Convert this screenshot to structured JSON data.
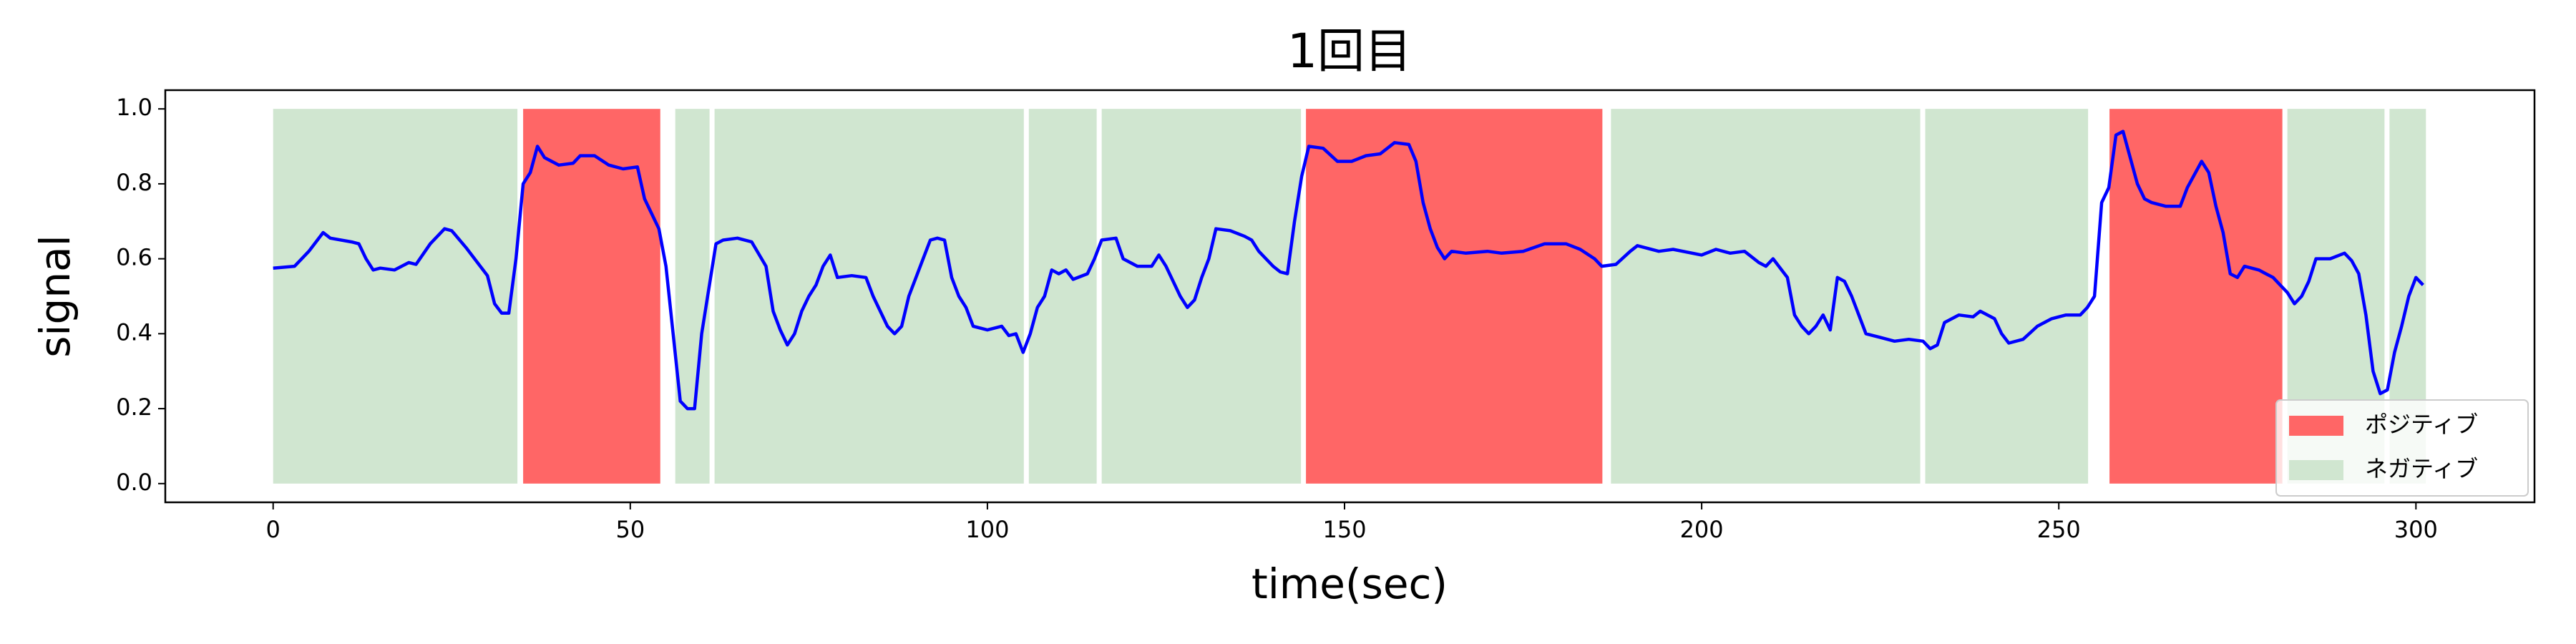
{
  "chart_data": {
    "type": "line",
    "title": "1回目",
    "x_label": "time(sec)",
    "y_label": "signal",
    "xlim": [
      -15.1,
      316.6
    ],
    "ylim": [
      -0.05,
      1.05
    ],
    "xticks": [
      0,
      50,
      100,
      150,
      200,
      250,
      300
    ],
    "yticks": [
      {
        "value": 0,
        "label": "0.0"
      },
      {
        "value": 0.2,
        "label": "0.2"
      },
      {
        "value": 0.4,
        "label": "0.4"
      },
      {
        "value": 0.6,
        "label": "0.6"
      },
      {
        "value": 0.8,
        "label": "0.8"
      },
      {
        "value": 1,
        "label": "1.0"
      }
    ],
    "color": "#0000ff",
    "legend": "lower right",
    "spans": [
      {
        "name": "ポジティブ",
        "color": "#ff6666",
        "ranges": [
          [
            35,
            54.2
          ],
          [
            144.6,
            186.1
          ],
          [
            257.1,
            281.3
          ]
        ]
      },
      {
        "name": "ネガティブ",
        "color": "#d0e6d0",
        "ranges": [
          [
            0,
            34.2
          ],
          [
            56.3,
            61.1
          ],
          [
            61.8,
            105.1
          ],
          [
            105.8,
            115.3
          ],
          [
            116,
            143.9
          ],
          [
            187.3,
            230.6
          ],
          [
            231.3,
            254.1
          ],
          [
            282,
            295.6
          ],
          [
            296.3,
            301.4
          ]
        ]
      }
    ],
    "x": [
      0,
      3,
      5,
      7,
      8,
      11,
      12,
      13,
      14,
      15,
      17,
      19,
      20,
      22,
      24,
      25,
      27,
      29,
      30,
      31,
      32,
      33,
      34,
      35,
      36,
      37,
      38,
      40,
      42,
      43,
      45,
      47,
      49,
      51,
      52,
      54,
      55,
      56,
      57,
      58,
      59,
      60,
      62,
      63,
      65,
      67,
      69,
      70,
      71,
      72,
      73,
      74,
      75,
      76,
      77,
      78,
      79,
      81,
      83,
      84,
      86,
      87,
      88,
      89,
      91,
      92,
      93,
      94,
      95,
      96,
      97,
      98,
      100,
      102,
      103,
      104,
      105,
      106,
      107,
      108,
      109,
      110,
      111,
      112,
      114,
      115,
      116,
      118,
      119,
      121,
      123,
      124,
      125,
      127,
      128,
      129,
      130,
      131,
      132,
      134,
      136,
      137,
      138,
      140,
      141,
      142,
      143,
      144,
      145,
      147,
      149,
      151,
      153,
      155,
      157,
      159,
      160,
      161,
      162,
      163,
      164,
      165,
      167,
      170,
      172,
      175,
      178,
      181,
      183,
      185,
      186,
      188,
      190,
      191,
      194,
      196,
      200,
      202,
      204,
      206,
      208,
      209,
      210,
      212,
      213,
      214,
      215,
      216,
      217,
      218,
      219,
      220,
      221,
      222,
      223,
      225,
      227,
      229,
      231,
      232,
      233,
      234,
      236,
      238,
      239,
      241,
      242,
      243,
      245,
      247,
      249,
      251,
      253,
      254,
      255,
      256,
      257,
      258,
      259,
      260,
      261,
      262,
      263,
      265,
      267,
      268,
      270,
      271,
      272,
      273,
      274,
      275,
      276,
      278,
      279,
      280,
      281,
      282,
      283,
      284,
      285,
      286,
      288,
      290,
      291,
      292,
      293,
      294,
      295,
      296,
      297,
      298,
      299,
      300,
      301
    ],
    "values": [
      0.575,
      0.58,
      0.62,
      0.67,
      0.655,
      0.645,
      0.64,
      0.6,
      0.57,
      0.575,
      0.57,
      0.59,
      0.585,
      0.64,
      0.68,
      0.675,
      0.63,
      0.58,
      0.555,
      0.48,
      0.455,
      0.455,
      0.6,
      0.8,
      0.83,
      0.9,
      0.87,
      0.85,
      0.855,
      0.875,
      0.875,
      0.85,
      0.84,
      0.845,
      0.76,
      0.68,
      0.58,
      0.4,
      0.22,
      0.2,
      0.2,
      0.4,
      0.64,
      0.65,
      0.655,
      0.645,
      0.58,
      0.46,
      0.41,
      0.37,
      0.4,
      0.46,
      0.5,
      0.53,
      0.58,
      0.61,
      0.55,
      0.555,
      0.55,
      0.5,
      0.42,
      0.4,
      0.42,
      0.5,
      0.6,
      0.65,
      0.655,
      0.65,
      0.55,
      0.5,
      0.47,
      0.42,
      0.41,
      0.42,
      0.395,
      0.4,
      0.35,
      0.4,
      0.47,
      0.5,
      0.57,
      0.56,
      0.57,
      0.545,
      0.56,
      0.6,
      0.65,
      0.655,
      0.6,
      0.58,
      0.58,
      0.61,
      0.58,
      0.5,
      0.47,
      0.49,
      0.55,
      0.6,
      0.68,
      0.675,
      0.66,
      0.65,
      0.62,
      0.58,
      0.565,
      0.56,
      0.7,
      0.82,
      0.9,
      0.895,
      0.86,
      0.86,
      0.875,
      0.88,
      0.91,
      0.905,
      0.86,
      0.75,
      0.68,
      0.63,
      0.6,
      0.62,
      0.615,
      0.62,
      0.615,
      0.62,
      0.64,
      0.64,
      0.625,
      0.6,
      0.58,
      0.585,
      0.62,
      0.635,
      0.62,
      0.625,
      0.61,
      0.625,
      0.615,
      0.62,
      0.59,
      0.58,
      0.6,
      0.55,
      0.45,
      0.42,
      0.4,
      0.42,
      0.45,
      0.41,
      0.55,
      0.54,
      0.5,
      0.45,
      0.4,
      0.39,
      0.38,
      0.385,
      0.38,
      0.36,
      0.37,
      0.43,
      0.45,
      0.445,
      0.46,
      0.44,
      0.4,
      0.375,
      0.385,
      0.42,
      0.44,
      0.45,
      0.45,
      0.47,
      0.5,
      0.75,
      0.79,
      0.93,
      0.94,
      0.87,
      0.8,
      0.76,
      0.75,
      0.74,
      0.74,
      0.79,
      0.86,
      0.83,
      0.74,
      0.67,
      0.56,
      0.55,
      0.58,
      0.57,
      0.56,
      0.55,
      0.53,
      0.51,
      0.48,
      0.5,
      0.54,
      0.6,
      0.6,
      0.615,
      0.595,
      0.56,
      0.45,
      0.3,
      0.24,
      0.25,
      0.35,
      0.42,
      0.5,
      0.55,
      0.53
    ]
  }
}
